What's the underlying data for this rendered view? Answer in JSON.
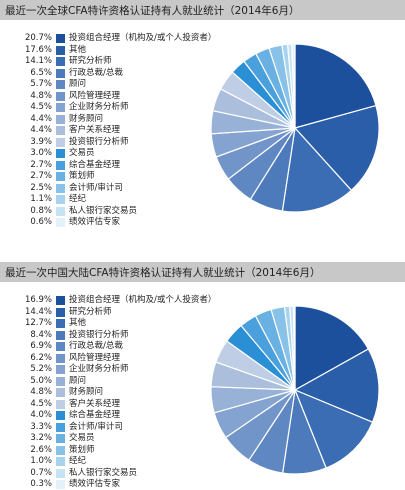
{
  "chart_data": [
    {
      "type": "pie",
      "title": "最近一次全球CFA特许资格认证持有人就业统计（2014年6月）",
      "slices": [
        {
          "pct_label": "20.7%",
          "value": 20.7,
          "label": "投资组合经理（机构及/或个人投资者）",
          "color": "#1c4f9c"
        },
        {
          "pct_label": "17.6%",
          "value": 17.6,
          "label": "其他",
          "color": "#2a5ea8"
        },
        {
          "pct_label": "14.1%",
          "value": 14.1,
          "label": "研究分析师",
          "color": "#3b6db4"
        },
        {
          "pct_label": "6.5%",
          "value": 6.5,
          "label": "行政总裁/总裁",
          "color": "#4d7abb"
        },
        {
          "pct_label": "5.7%",
          "value": 5.7,
          "label": "顾问",
          "color": "#5f87c2"
        },
        {
          "pct_label": "4.8%",
          "value": 4.8,
          "label": "风险管理经理",
          "color": "#7295c9"
        },
        {
          "pct_label": "4.5%",
          "value": 4.5,
          "label": "企业财务分析师",
          "color": "#85a3d0"
        },
        {
          "pct_label": "4.4%",
          "value": 4.4,
          "label": "财务顾问",
          "color": "#98b1d6"
        },
        {
          "pct_label": "4.4%",
          "value": 4.4,
          "label": "客户关系经理",
          "color": "#abbfdd"
        },
        {
          "pct_label": "3.9%",
          "value": 3.9,
          "label": "投资银行分析师",
          "color": "#bfcee5"
        },
        {
          "pct_label": "3.0%",
          "value": 3.0,
          "label": "交易员",
          "color": "#2b8fd6"
        },
        {
          "pct_label": "2.7%",
          "value": 2.7,
          "label": "综合基金经理",
          "color": "#4aa0dc"
        },
        {
          "pct_label": "2.7%",
          "value": 2.7,
          "label": "策划师",
          "color": "#69b1e2"
        },
        {
          "pct_label": "2.5%",
          "value": 2.5,
          "label": "会计师/审计司",
          "color": "#88c2e8"
        },
        {
          "pct_label": "1.1%",
          "value": 1.1,
          "label": "经纪",
          "color": "#a7d3ee"
        },
        {
          "pct_label": "0.8%",
          "value": 0.8,
          "label": "私人银行家交易员",
          "color": "#c6e3f4"
        },
        {
          "pct_label": "0.6%",
          "value": 0.6,
          "label": "绩效评估专家",
          "color": "#e2f1fa"
        }
      ]
    },
    {
      "type": "pie",
      "title": "最近一次中国大陆CFA特许资格认证持有人就业统计（2014年6月）",
      "slices": [
        {
          "pct_label": "16.9%",
          "value": 16.9,
          "label": "投资组合经理（机构及/或个人投资者）",
          "color": "#1c4f9c"
        },
        {
          "pct_label": "14.4%",
          "value": 14.4,
          "label": "研究分析师",
          "color": "#2a5ea8"
        },
        {
          "pct_label": "12.7%",
          "value": 12.7,
          "label": "其他",
          "color": "#3b6db4"
        },
        {
          "pct_label": "8.4%",
          "value": 8.4,
          "label": "投资银行分析师",
          "color": "#4d7abb"
        },
        {
          "pct_label": "6.9%",
          "value": 6.9,
          "label": "行政总裁/总裁",
          "color": "#5f87c2"
        },
        {
          "pct_label": "6.2%",
          "value": 6.2,
          "label": "风险管理经理",
          "color": "#7295c9"
        },
        {
          "pct_label": "5.2%",
          "value": 5.2,
          "label": "企业财务分析师",
          "color": "#85a3d0"
        },
        {
          "pct_label": "5.0%",
          "value": 5.0,
          "label": "顾问",
          "color": "#98b1d6"
        },
        {
          "pct_label": "4.8%",
          "value": 4.8,
          "label": "财务顾问",
          "color": "#abbfdd"
        },
        {
          "pct_label": "4.5%",
          "value": 4.5,
          "label": "客户关系经理",
          "color": "#bfcee5"
        },
        {
          "pct_label": "4.0%",
          "value": 4.0,
          "label": "综合基金经理",
          "color": "#2b8fd6"
        },
        {
          "pct_label": "3.3%",
          "value": 3.3,
          "label": "会计师/审计司",
          "color": "#4aa0dc"
        },
        {
          "pct_label": "3.2%",
          "value": 3.2,
          "label": "交易员",
          "color": "#69b1e2"
        },
        {
          "pct_label": "2.6%",
          "value": 2.6,
          "label": "策划师",
          "color": "#88c2e8"
        },
        {
          "pct_label": "1.0%",
          "value": 1.0,
          "label": "经纪",
          "color": "#a7d3ee"
        },
        {
          "pct_label": "0.7%",
          "value": 0.7,
          "label": "私人银行家交易员",
          "color": "#c6e3f4"
        },
        {
          "pct_label": "0.3%",
          "value": 0.3,
          "label": "绩效评估专家",
          "color": "#e2f1fa"
        }
      ]
    }
  ]
}
